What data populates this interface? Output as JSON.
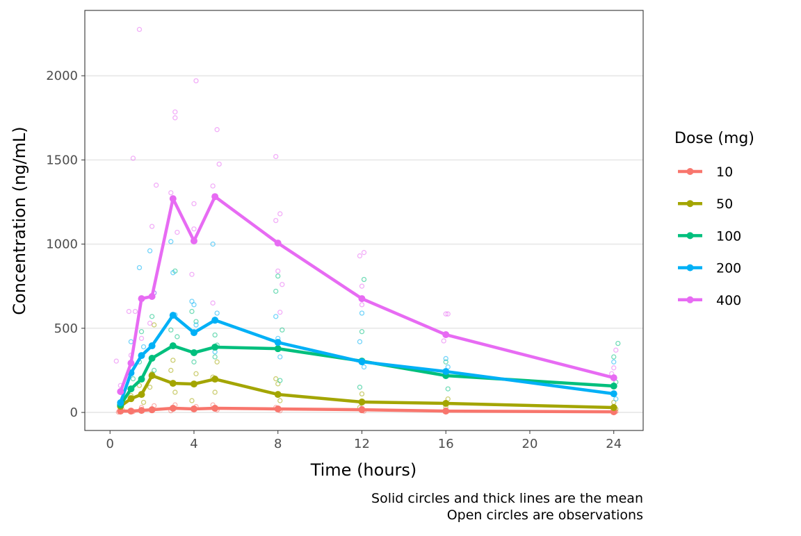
{
  "chart_data": {
    "type": "line",
    "xlabel": "Time (hours)",
    "ylabel": "Concentration (ng/mL)",
    "xlim": [
      -1.2,
      25.4
    ],
    "ylim": [
      -107,
      2388
    ],
    "x_ticks": [
      0,
      4,
      8,
      12,
      16,
      20,
      24
    ],
    "y_ticks": [
      0,
      500,
      1000,
      1500,
      2000
    ],
    "grid": "horizontal major",
    "legend": {
      "title": "Dose (mg)",
      "position": "right"
    },
    "caption": [
      "Solid circles and thick lines are the mean",
      "Open circles are observations"
    ],
    "x": [
      0.5,
      1,
      1.5,
      2,
      3,
      4,
      5,
      8,
      12,
      16,
      24
    ],
    "series": [
      {
        "name": "10",
        "color": "#F8766D",
        "values": [
          8,
          8,
          12,
          16,
          25,
          21,
          25,
          21,
          16,
          8,
          4
        ],
        "observations": [
          [
            0.4,
            2
          ],
          [
            0.6,
            15
          ],
          [
            1.1,
            5
          ],
          [
            1.5,
            30
          ],
          [
            2.1,
            40
          ],
          [
            2.9,
            10
          ],
          [
            3.1,
            45
          ],
          [
            4.1,
            35
          ],
          [
            4.9,
            45
          ],
          [
            5.1,
            15
          ],
          [
            7.9,
            30
          ],
          [
            8.1,
            10
          ],
          [
            12.0,
            25
          ],
          [
            12.1,
            8
          ],
          [
            16.0,
            15
          ],
          [
            24.1,
            5
          ],
          [
            24.0,
            12
          ]
        ]
      },
      {
        "name": "50",
        "color": "#A3A500",
        "values": [
          37,
          82,
          107,
          219,
          173,
          169,
          198,
          107,
          62,
          54,
          29
        ],
        "observations": [
          [
            0.6,
            60
          ],
          [
            1.0,
            100
          ],
          [
            1.4,
            160
          ],
          [
            1.6,
            60
          ],
          [
            2.0,
            230
          ],
          [
            2.1,
            520
          ],
          [
            1.9,
            150
          ],
          [
            2.9,
            250
          ],
          [
            3.1,
            120
          ],
          [
            3.0,
            310
          ],
          [
            4.1,
            230
          ],
          [
            3.9,
            70
          ],
          [
            4.9,
            210
          ],
          [
            5.1,
            300
          ],
          [
            5.0,
            120
          ],
          [
            7.9,
            200
          ],
          [
            8.1,
            70
          ],
          [
            8.0,
            170
          ],
          [
            12.0,
            110
          ],
          [
            11.9,
            30
          ],
          [
            16.1,
            80
          ],
          [
            16.0,
            30
          ],
          [
            24.0,
            60
          ],
          [
            24.1,
            20
          ]
        ]
      },
      {
        "name": "100",
        "color": "#00BF7D",
        "values": [
          45,
          140,
          198,
          322,
          396,
          355,
          388,
          379,
          305,
          219,
          157
        ],
        "observations": [
          [
            0.6,
            80
          ],
          [
            1.1,
            200
          ],
          [
            1.4,
            300
          ],
          [
            1.5,
            480
          ],
          [
            2.0,
            570
          ],
          [
            2.1,
            250
          ],
          [
            2.9,
            490
          ],
          [
            3.1,
            840
          ],
          [
            3.2,
            450
          ],
          [
            3.9,
            600
          ],
          [
            4.1,
            540
          ],
          [
            4.0,
            300
          ],
          [
            5.0,
            460
          ],
          [
            5.1,
            400
          ],
          [
            5.0,
            330
          ],
          [
            7.9,
            720
          ],
          [
            8.0,
            810
          ],
          [
            8.2,
            490
          ],
          [
            8.1,
            190
          ],
          [
            12.1,
            790
          ],
          [
            12.0,
            480
          ],
          [
            11.9,
            150
          ],
          [
            16.0,
            300
          ],
          [
            16.1,
            140
          ],
          [
            24.0,
            330
          ],
          [
            24.1,
            180
          ],
          [
            24.2,
            410
          ]
        ]
      },
      {
        "name": "200",
        "color": "#00B0F6",
        "values": [
          58,
          235,
          338,
          396,
          577,
          474,
          548,
          416,
          301,
          243,
          111
        ],
        "observations": [
          [
            0.5,
            120
          ],
          [
            1.0,
            420
          ],
          [
            1.4,
            860
          ],
          [
            1.6,
            390
          ],
          [
            1.9,
            960
          ],
          [
            2.1,
            710
          ],
          [
            2.9,
            1015
          ],
          [
            3.0,
            830
          ],
          [
            3.1,
            580
          ],
          [
            3.9,
            660
          ],
          [
            4.0,
            640
          ],
          [
            4.1,
            520
          ],
          [
            4.9,
            1000
          ],
          [
            5.1,
            590
          ],
          [
            5.0,
            360
          ],
          [
            7.9,
            570
          ],
          [
            8.0,
            440
          ],
          [
            8.1,
            330
          ],
          [
            12.0,
            590
          ],
          [
            11.9,
            420
          ],
          [
            12.1,
            270
          ],
          [
            16.0,
            320
          ],
          [
            16.1,
            270
          ],
          [
            24.0,
            300
          ],
          [
            24.1,
            80
          ]
        ]
      },
      {
        "name": "400",
        "color": "#E76BF3",
        "values": [
          124,
          293,
          676,
          689,
          1270,
          1019,
          1282,
          1006,
          676,
          462,
          206
        ],
        "observations": [
          [
            0.3,
            305
          ],
          [
            0.5,
            160
          ],
          [
            0.9,
            600
          ],
          [
            1.0,
            340
          ],
          [
            1.1,
            1510
          ],
          [
            1.2,
            600
          ],
          [
            1.4,
            2275
          ],
          [
            1.5,
            440
          ],
          [
            1.9,
            530
          ],
          [
            2.0,
            1105
          ],
          [
            2.2,
            1350
          ],
          [
            2.1,
            710
          ],
          [
            2.9,
            1305
          ],
          [
            3.1,
            1785
          ],
          [
            3.1,
            1750
          ],
          [
            3.2,
            1070
          ],
          [
            4.0,
            1240
          ],
          [
            4.1,
            1970
          ],
          [
            4.0,
            1090
          ],
          [
            3.9,
            820
          ],
          [
            4.9,
            1345
          ],
          [
            5.1,
            1680
          ],
          [
            5.2,
            1475
          ],
          [
            4.9,
            650
          ],
          [
            7.9,
            1520
          ],
          [
            8.1,
            1180
          ],
          [
            7.9,
            1140
          ],
          [
            8.0,
            840
          ],
          [
            8.1,
            595
          ],
          [
            8.2,
            760
          ],
          [
            11.9,
            930
          ],
          [
            12.1,
            950
          ],
          [
            12.0,
            750
          ],
          [
            12.0,
            640
          ],
          [
            16.0,
            585
          ],
          [
            16.1,
            585
          ],
          [
            15.9,
            425
          ],
          [
            24.0,
            265
          ],
          [
            24.1,
            370
          ],
          [
            23.9,
            230
          ]
        ]
      }
    ]
  }
}
